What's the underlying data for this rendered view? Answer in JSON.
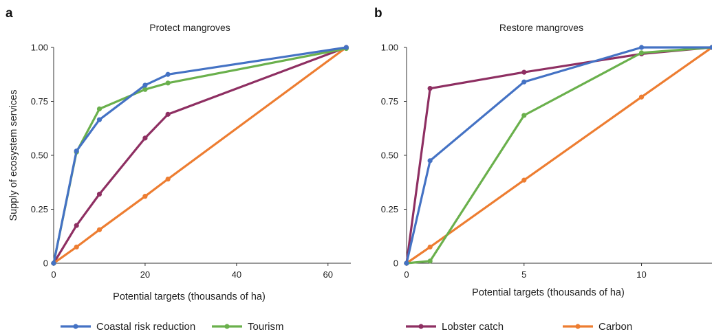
{
  "colors": {
    "Coastal risk reduction": "#4472c4",
    "Tourism": "#6ab04c",
    "Lobster catch": "#8e2f62",
    "Carbon": "#ed7d31"
  },
  "chart_data": [
    {
      "type": "line",
      "panel_letter": "a",
      "title": "Protect mangroves",
      "xlabel": "Potential targets (thousands of ha)",
      "ylabel": "Supply of ecosystem services",
      "xlim": [
        0,
        65
      ],
      "ylim": [
        0,
        1
      ],
      "xticks": [
        0,
        20,
        40,
        60
      ],
      "xtick_labels": [
        "0",
        "20",
        "40",
        "60"
      ],
      "yticks": [
        0,
        0.25,
        0.5,
        0.75,
        1.0
      ],
      "ytick_labels": [
        "0",
        "0.25",
        "0.50",
        "0.75",
        "1.00"
      ],
      "grid": false,
      "series": [
        {
          "name": "Coastal risk reduction",
          "points": [
            [
              0,
              0
            ],
            [
              5,
              0.52
            ],
            [
              10,
              0.665
            ],
            [
              20,
              0.825
            ],
            [
              25,
              0.875
            ],
            [
              64,
              1.0
            ]
          ]
        },
        {
          "name": "Tourism",
          "points": [
            [
              0,
              0
            ],
            [
              5,
              0.515
            ],
            [
              10,
              0.715
            ],
            [
              20,
              0.805
            ],
            [
              25,
              0.835
            ],
            [
              64,
              0.995
            ]
          ]
        },
        {
          "name": "Lobster catch",
          "points": [
            [
              0,
              0
            ],
            [
              5,
              0.175
            ],
            [
              10,
              0.32
            ],
            [
              20,
              0.58
            ],
            [
              25,
              0.69
            ],
            [
              64,
              1.0
            ]
          ]
        },
        {
          "name": "Carbon",
          "points": [
            [
              0,
              0
            ],
            [
              5,
              0.075
            ],
            [
              10,
              0.155
            ],
            [
              20,
              0.31
            ],
            [
              25,
              0.39
            ],
            [
              64,
              1.0
            ]
          ]
        }
      ]
    },
    {
      "type": "line",
      "panel_letter": "b",
      "title": "Restore mangroves",
      "xlabel": "Potential targets (thousands of ha)",
      "ylabel": "",
      "xlim": [
        0,
        13
      ],
      "ylim": [
        0,
        1
      ],
      "xticks": [
        0,
        5,
        10
      ],
      "xtick_labels": [
        "0",
        "5",
        "10"
      ],
      "yticks": [
        0,
        0.25,
        0.5,
        0.75,
        1.0
      ],
      "ytick_labels": [
        "0",
        "0.25",
        "0.50",
        "0.75",
        "1.00"
      ],
      "grid": false,
      "series": [
        {
          "name": "Coastal risk reduction",
          "points": [
            [
              0,
              0
            ],
            [
              1,
              0.475
            ],
            [
              5,
              0.84
            ],
            [
              10,
              1.0
            ],
            [
              13,
              1.0
            ]
          ]
        },
        {
          "name": "Tourism",
          "points": [
            [
              0,
              0
            ],
            [
              1,
              0.01
            ],
            [
              5,
              0.685
            ],
            [
              10,
              0.975
            ],
            [
              13,
              1.0
            ]
          ]
        },
        {
          "name": "Lobster catch",
          "points": [
            [
              0,
              0
            ],
            [
              1,
              0.81
            ],
            [
              5,
              0.885
            ],
            [
              10,
              0.97
            ],
            [
              13,
              1.0
            ]
          ]
        },
        {
          "name": "Carbon",
          "points": [
            [
              0,
              0
            ],
            [
              1,
              0.075
            ],
            [
              5,
              0.385
            ],
            [
              10,
              0.77
            ],
            [
              13,
              1.0
            ]
          ]
        }
      ]
    }
  ],
  "legend": {
    "placement": "bottom",
    "items": [
      "Coastal risk reduction",
      "Tourism",
      "Lobster catch",
      "Carbon"
    ]
  }
}
